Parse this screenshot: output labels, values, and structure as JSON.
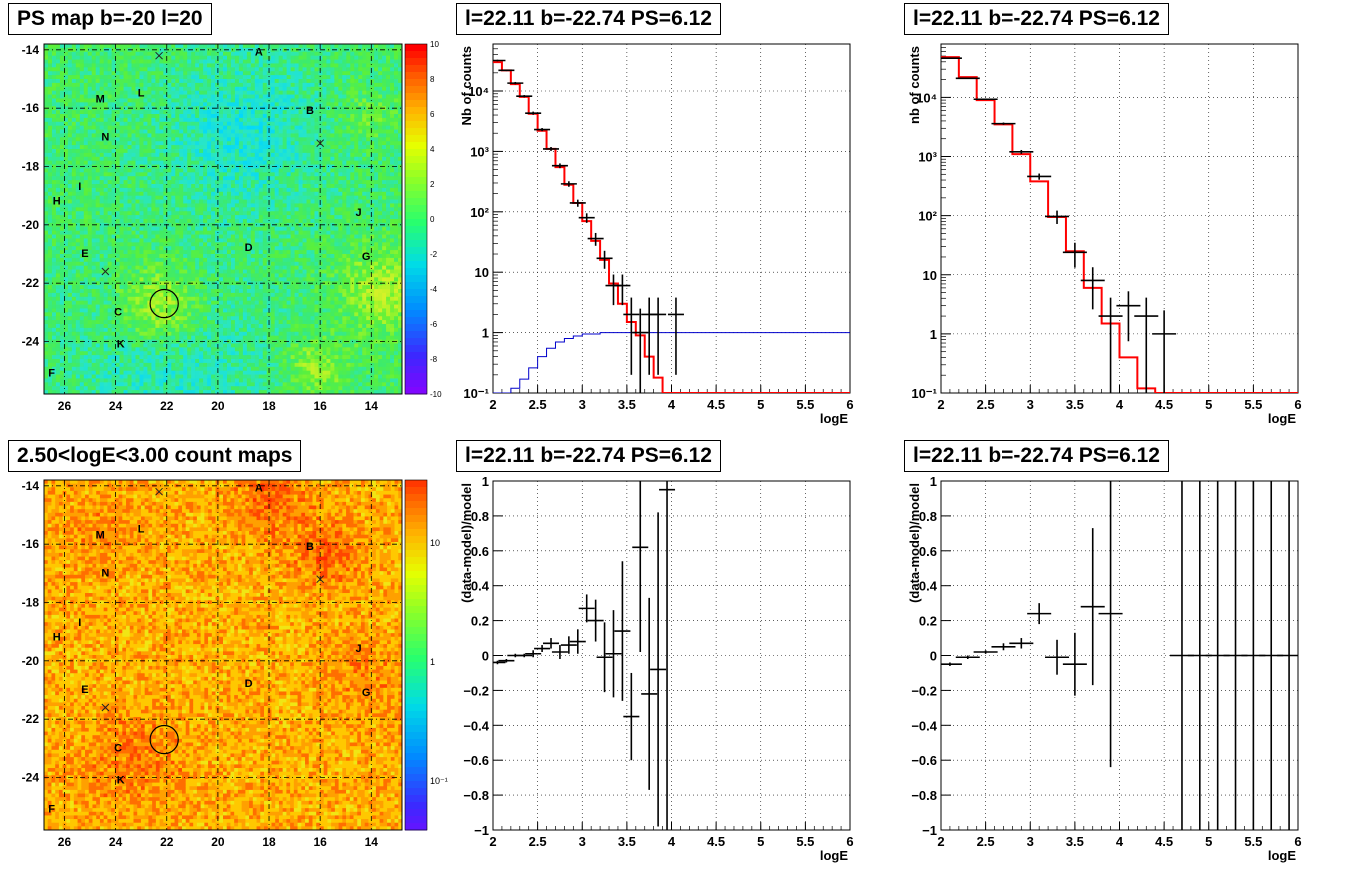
{
  "panels": {
    "map_top_title": "PS map b=-20 l=20",
    "map_bottom_title": "2.50<logE<3.00 count maps",
    "spec_left_title": "l=22.11 b=-22.74 PS=6.12",
    "spec_right_title": "l=22.11 b=-22.74 PS=6.12",
    "res_left_title": "l=22.11 b=-22.74 PS=6.12",
    "res_right_title": "l=22.11 b=-22.74 PS=6.12"
  },
  "colors": {
    "model_line": "#ff0000",
    "background_line": "#0000cc",
    "data": "#000000",
    "grid": "#000000"
  },
  "chart_data": [
    {
      "id": "ps_map",
      "type": "heatmap",
      "title": "PS map b=-20 l=20",
      "xlim": [
        26.8,
        12.8
      ],
      "ylim": [
        -25.8,
        -13.8
      ],
      "x_ticks": [
        26,
        24,
        22,
        20,
        18,
        16,
        14
      ],
      "y_ticks": [
        -14,
        -16,
        -18,
        -20,
        -22,
        -24
      ],
      "colorbar": {
        "min": -10,
        "max": 10,
        "scale": "linear",
        "ticks": [
          "10",
          "8",
          "6",
          "4",
          "2",
          "0",
          "-2",
          "-4",
          "-6",
          "-8",
          "-10"
        ]
      },
      "sources": [
        {
          "label": "A",
          "l": 18.4,
          "b": -14.2
        },
        {
          "label": "B",
          "l": 16.4,
          "b": -16.2
        },
        {
          "label": "M",
          "l": 24.6,
          "b": -15.8
        },
        {
          "label": "L",
          "l": 23.0,
          "b": -15.6
        },
        {
          "label": "N",
          "l": 24.4,
          "b": -17.1
        },
        {
          "label": "I",
          "l": 25.4,
          "b": -18.8
        },
        {
          "label": "H",
          "l": 26.3,
          "b": -19.3
        },
        {
          "label": "J",
          "l": 14.5,
          "b": -19.7
        },
        {
          "label": "D",
          "l": 18.8,
          "b": -20.9
        },
        {
          "label": "E",
          "l": 25.2,
          "b": -21.1
        },
        {
          "label": "G",
          "l": 14.2,
          "b": -21.2
        },
        {
          "label": "C",
          "l": 23.9,
          "b": -23.1
        },
        {
          "label": "K",
          "l": 23.8,
          "b": -24.2
        },
        {
          "label": "F",
          "l": 26.5,
          "b": -25.2
        }
      ],
      "crosses": [
        {
          "l": 22.3,
          "b": -14.2
        },
        {
          "l": 16.0,
          "b": -17.2
        },
        {
          "l": 24.4,
          "b": -21.6
        }
      ],
      "circle": {
        "l": 22.1,
        "b": -22.7,
        "r": 0.55
      }
    },
    {
      "id": "count_map",
      "type": "heatmap",
      "title": "2.50<logE<3.00 count maps",
      "xlim": [
        26.8,
        12.8
      ],
      "ylim": [
        -25.8,
        -13.8
      ],
      "x_ticks": [
        26,
        24,
        22,
        20,
        18,
        16,
        14
      ],
      "y_ticks": [
        -14,
        -16,
        -18,
        -20,
        -22,
        -24
      ],
      "colorbar": {
        "scale": "log",
        "ticks": [
          "10",
          "1",
          "10⁻¹"
        ]
      },
      "sources": [
        {
          "label": "A",
          "l": 18.4,
          "b": -14.2
        },
        {
          "label": "B",
          "l": 16.4,
          "b": -16.2
        },
        {
          "label": "M",
          "l": 24.6,
          "b": -15.8
        },
        {
          "label": "L",
          "l": 23.0,
          "b": -15.6
        },
        {
          "label": "N",
          "l": 24.4,
          "b": -17.1
        },
        {
          "label": "I",
          "l": 25.4,
          "b": -18.8
        },
        {
          "label": "H",
          "l": 26.3,
          "b": -19.3
        },
        {
          "label": "J",
          "l": 14.5,
          "b": -19.7
        },
        {
          "label": "D",
          "l": 18.8,
          "b": -20.9
        },
        {
          "label": "E",
          "l": 25.2,
          "b": -21.1
        },
        {
          "label": "G",
          "l": 14.2,
          "b": -21.2
        },
        {
          "label": "C",
          "l": 23.9,
          "b": -23.1
        },
        {
          "label": "K",
          "l": 23.8,
          "b": -24.2
        },
        {
          "label": "F",
          "l": 26.5,
          "b": -25.2
        }
      ],
      "crosses": [
        {
          "l": 22.3,
          "b": -14.2
        },
        {
          "l": 16.0,
          "b": -17.2
        },
        {
          "l": 24.4,
          "b": -21.6
        }
      ],
      "circle": {
        "l": 22.1,
        "b": -22.7,
        "r": 0.55
      }
    },
    {
      "id": "spec_left",
      "type": "line",
      "title": "l=22.11 b=-22.74 PS=6.12",
      "xlabel": "logE",
      "ylabel": "Nb of counts",
      "xlim": [
        2,
        6
      ],
      "ylim": [
        0.1,
        60000
      ],
      "yscale": "log",
      "x_ticks": [
        "2",
        "2.5",
        "3",
        "3.5",
        "4",
        "4.5",
        "5",
        "5.5",
        "6"
      ],
      "y_ticks": [
        "10⁻¹",
        "1",
        "10",
        "10²",
        "10³",
        "10⁴"
      ],
      "grid": true,
      "model_steps": {
        "edges": [
          2.0,
          2.1,
          2.2,
          2.3,
          2.4,
          2.5,
          2.6,
          2.7,
          2.8,
          2.9,
          3.0,
          3.1,
          3.2,
          3.3,
          3.4,
          3.5,
          3.6,
          3.7,
          3.8,
          3.9,
          4.0,
          4.1,
          4.2,
          6.0
        ],
        "values": [
          30000,
          22000,
          13000,
          8000,
          4200,
          2200,
          1100,
          550,
          280,
          140,
          70,
          33,
          16,
          6.5,
          3.0,
          1.5,
          0.9,
          0.4,
          0.18,
          0.1,
          0.1,
          0.1,
          0.1
        ]
      },
      "background_steps": {
        "edges": [
          2.0,
          2.1,
          2.2,
          2.3,
          2.4,
          2.5,
          2.6,
          2.7,
          2.8,
          2.9,
          3.0,
          3.2,
          3.5,
          6.0
        ],
        "values": [
          0.08,
          0.1,
          0.12,
          0.17,
          0.26,
          0.4,
          0.55,
          0.7,
          0.8,
          0.88,
          0.95,
          1.0,
          1.0
        ]
      },
      "data_points": [
        {
          "x": 2.05,
          "y": 32000,
          "err": 0.02
        },
        {
          "x": 2.15,
          "y": 22000,
          "err": 0.02
        },
        {
          "x": 2.25,
          "y": 13500,
          "err": 0.03
        },
        {
          "x": 2.35,
          "y": 8200,
          "err": 0.03
        },
        {
          "x": 2.45,
          "y": 4300,
          "err": 0.04
        },
        {
          "x": 2.55,
          "y": 2300,
          "err": 0.04
        },
        {
          "x": 2.65,
          "y": 1100,
          "err": 0.05
        },
        {
          "x": 2.75,
          "y": 580,
          "err": 0.06
        },
        {
          "x": 2.85,
          "y": 290,
          "err": 0.07
        },
        {
          "x": 2.95,
          "y": 140,
          "err": 0.09
        },
        {
          "x": 3.05,
          "y": 80,
          "err": 0.12
        },
        {
          "x": 3.15,
          "y": 36,
          "err": 0.16
        },
        {
          "x": 3.25,
          "y": 17,
          "err": 0.22
        },
        {
          "x": 3.35,
          "y": 6,
          "err": 0.35
        },
        {
          "x": 3.45,
          "y": 6,
          "err": 0.35
        },
        {
          "x": 3.55,
          "y": 2,
          "err": 0.6
        },
        {
          "x": 3.65,
          "y": 1,
          "err": 1.0
        },
        {
          "x": 3.75,
          "y": 2,
          "err": 0.6
        },
        {
          "x": 3.85,
          "y": 2,
          "err": 0.6
        },
        {
          "x": 4.05,
          "y": 2,
          "err": 0.6
        }
      ]
    },
    {
      "id": "spec_right",
      "type": "line",
      "title": "l=22.11 b=-22.74 PS=6.12",
      "xlabel": "logE",
      "ylabel": "nb of counts",
      "xlim": [
        2,
        6
      ],
      "ylim": [
        0.1,
        80000
      ],
      "yscale": "log",
      "x_ticks": [
        "2",
        "2.5",
        "3",
        "3.5",
        "4",
        "4.5",
        "5",
        "5.5",
        "6"
      ],
      "y_ticks": [
        "10⁻¹",
        "1",
        "10",
        "10²",
        "10³",
        "10⁴"
      ],
      "grid": true,
      "model_steps": {
        "edges": [
          2.0,
          2.2,
          2.4,
          2.6,
          2.8,
          3.0,
          3.2,
          3.4,
          3.6,
          3.8,
          4.0,
          4.2,
          4.4,
          6.0
        ],
        "values": [
          48000,
          22000,
          9000,
          3500,
          1100,
          380,
          95,
          25,
          6,
          1.5,
          0.4,
          0.12,
          0.1
        ]
      },
      "data_points": [
        {
          "x": 2.1,
          "y": 46000,
          "err": 0.01
        },
        {
          "x": 2.3,
          "y": 21000,
          "err": 0.01
        },
        {
          "x": 2.5,
          "y": 9300,
          "err": 0.02
        },
        {
          "x": 2.7,
          "y": 3600,
          "err": 0.03
        },
        {
          "x": 2.9,
          "y": 1200,
          "err": 0.05
        },
        {
          "x": 3.1,
          "y": 460,
          "err": 0.08
        },
        {
          "x": 3.3,
          "y": 97,
          "err": 0.17
        },
        {
          "x": 3.5,
          "y": 24,
          "err": 0.3
        },
        {
          "x": 3.7,
          "y": 8,
          "err": 0.45
        },
        {
          "x": 3.9,
          "y": 2,
          "err": 0.7
        },
        {
          "x": 4.1,
          "y": 3,
          "err": 0.5
        },
        {
          "x": 4.3,
          "y": 2,
          "err": 0.7
        },
        {
          "x": 4.5,
          "y": 1,
          "err": 1.0
        }
      ]
    },
    {
      "id": "res_left",
      "type": "scatter",
      "title": "l=22.11 b=-22.74 PS=6.12",
      "xlabel": "logE",
      "ylabel": "(data-model)/model",
      "xlim": [
        2,
        6
      ],
      "ylim": [
        -1,
        1
      ],
      "x_ticks": [
        "2",
        "2.5",
        "3",
        "3.5",
        "4",
        "4.5",
        "5",
        "5.5",
        "6"
      ],
      "y_ticks": [
        "−1",
        "−0.8",
        "−0.6",
        "−0.4",
        "−0.2",
        "0",
        "0.2",
        "0.4",
        "0.6",
        "0.8",
        "1"
      ],
      "grid": true,
      "points": [
        {
          "x": 2.05,
          "y": -0.04,
          "err": 0.01
        },
        {
          "x": 2.15,
          "y": -0.03,
          "err": 0.01
        },
        {
          "x": 2.25,
          "y": 0.0,
          "err": 0.01
        },
        {
          "x": 2.35,
          "y": 0.0,
          "err": 0.01
        },
        {
          "x": 2.45,
          "y": 0.01,
          "err": 0.02
        },
        {
          "x": 2.55,
          "y": 0.04,
          "err": 0.02
        },
        {
          "x": 2.65,
          "y": 0.07,
          "err": 0.03
        },
        {
          "x": 2.75,
          "y": 0.02,
          "err": 0.04
        },
        {
          "x": 2.85,
          "y": 0.06,
          "err": 0.05
        },
        {
          "x": 2.95,
          "y": 0.08,
          "err": 0.07
        },
        {
          "x": 3.05,
          "y": 0.27,
          "err": 0.08
        },
        {
          "x": 3.15,
          "y": 0.2,
          "err": 0.12
        },
        {
          "x": 3.25,
          "y": -0.01,
          "err": 0.2
        },
        {
          "x": 3.35,
          "y": 0.01,
          "err": 0.25
        },
        {
          "x": 3.45,
          "y": 0.14,
          "err": 0.4
        },
        {
          "x": 3.55,
          "y": -0.35,
          "err": 0.25
        },
        {
          "x": 3.65,
          "y": 0.62,
          "err": 0.6
        },
        {
          "x": 3.75,
          "y": -0.22,
          "err": 0.55
        },
        {
          "x": 3.85,
          "y": -0.08,
          "err": 0.9
        },
        {
          "x": 3.95,
          "y": 0.95,
          "err": 2.2
        }
      ]
    },
    {
      "id": "res_right",
      "type": "scatter",
      "title": "l=22.11 b=-22.74 PS=6.12",
      "xlabel": "logE",
      "ylabel": "(data-model)/model",
      "xlim": [
        2,
        6
      ],
      "ylim": [
        -1,
        1
      ],
      "x_ticks": [
        "2",
        "2.5",
        "3",
        "3.5",
        "4",
        "4.5",
        "5",
        "5.5",
        "6"
      ],
      "y_ticks": [
        "−1",
        "−0.8",
        "−0.6",
        "−0.4",
        "−0.2",
        "0",
        "0.2",
        "0.4",
        "0.6",
        "0.8",
        "1"
      ],
      "grid": true,
      "points": [
        {
          "x": 2.1,
          "y": -0.05,
          "err": 0.01
        },
        {
          "x": 2.3,
          "y": -0.01,
          "err": 0.01
        },
        {
          "x": 2.5,
          "y": 0.02,
          "err": 0.01
        },
        {
          "x": 2.7,
          "y": 0.05,
          "err": 0.02
        },
        {
          "x": 2.9,
          "y": 0.07,
          "err": 0.03
        },
        {
          "x": 3.1,
          "y": 0.24,
          "err": 0.06
        },
        {
          "x": 3.3,
          "y": -0.01,
          "err": 0.1
        },
        {
          "x": 3.5,
          "y": -0.05,
          "err": 0.18
        },
        {
          "x": 3.7,
          "y": 0.28,
          "err": 0.45
        },
        {
          "x": 3.9,
          "y": 0.24,
          "err": 0.88
        },
        {
          "x": 4.7,
          "y": 0.0,
          "err": 5
        },
        {
          "x": 4.9,
          "y": 0.0,
          "err": 5
        },
        {
          "x": 5.1,
          "y": 0.0,
          "err": 5
        },
        {
          "x": 5.3,
          "y": 0.0,
          "err": 5
        },
        {
          "x": 5.5,
          "y": 0.0,
          "err": 5
        },
        {
          "x": 5.7,
          "y": 0.0,
          "err": 5
        },
        {
          "x": 5.9,
          "y": 0.0,
          "err": 5
        }
      ]
    }
  ]
}
